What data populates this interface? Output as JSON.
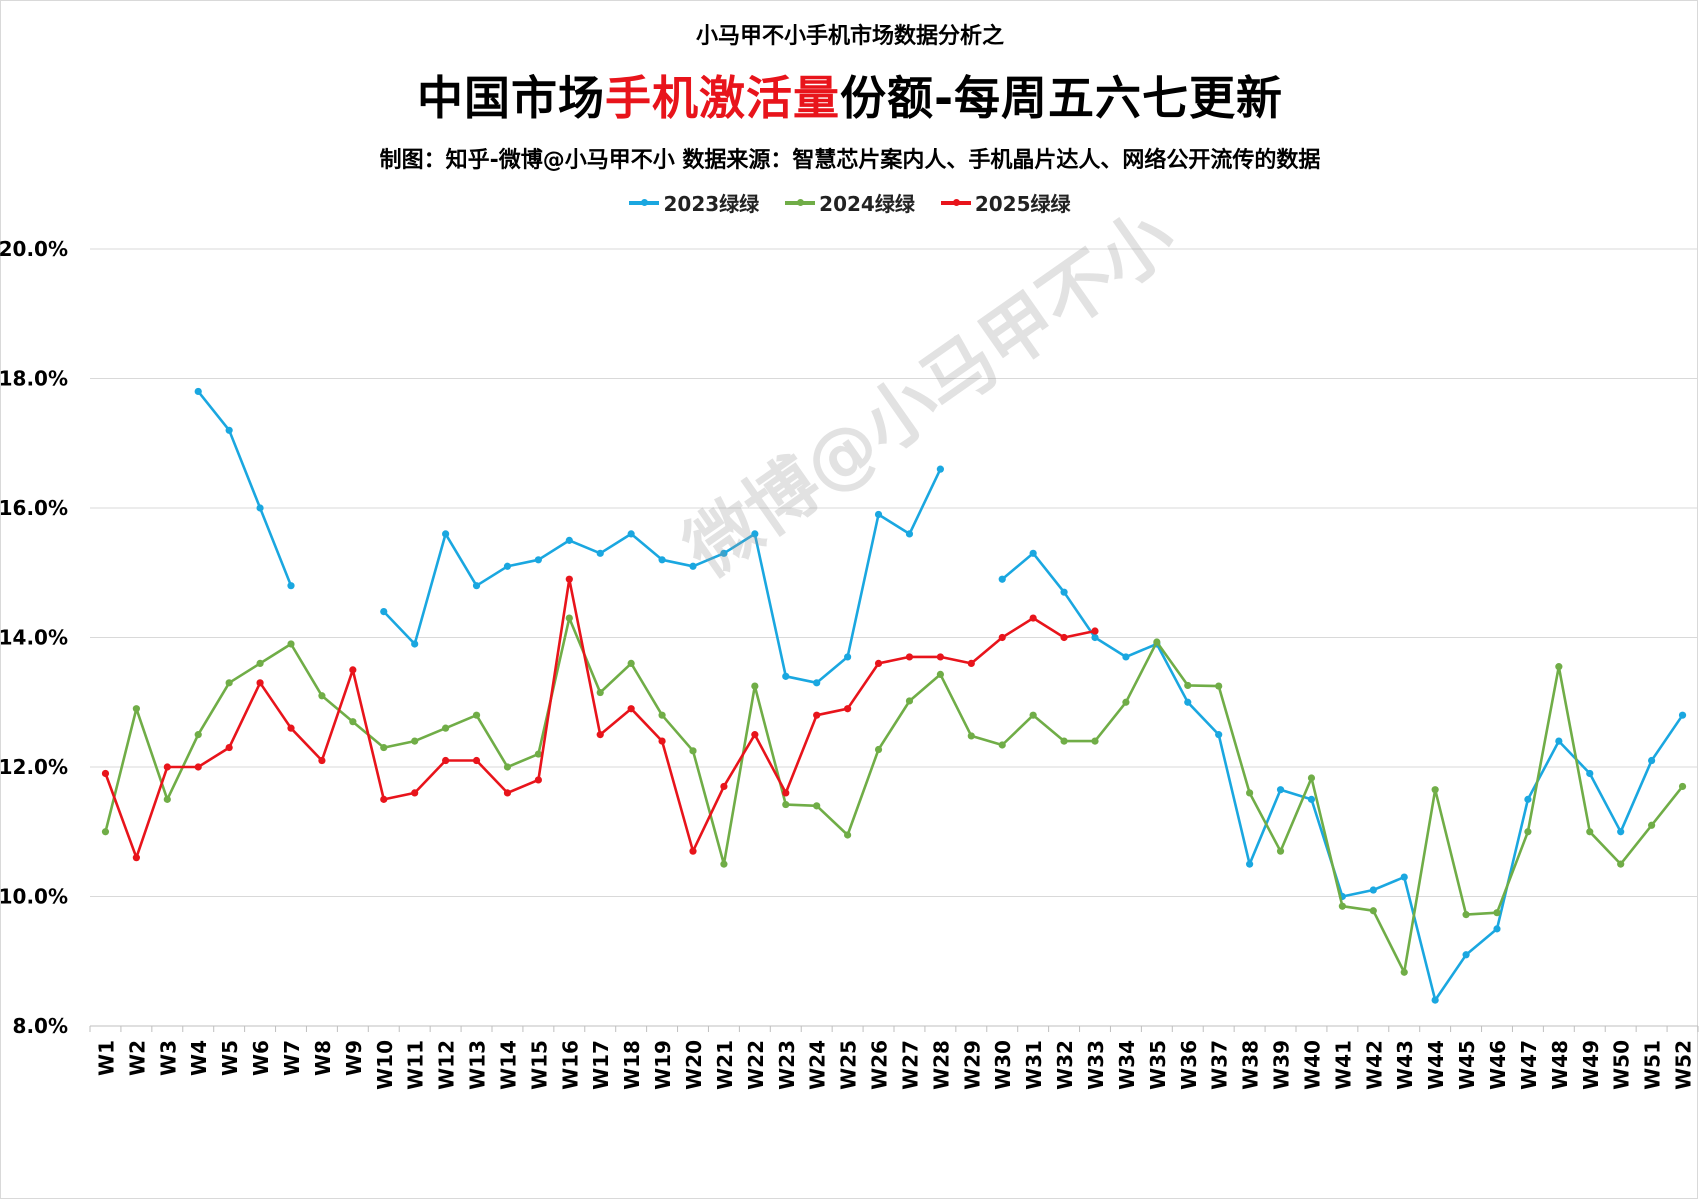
{
  "header": {
    "top_line": "小马甲不小手机市场数据分析之",
    "title_prefix": "中国市场",
    "title_highlight": "手机激活量",
    "title_suffix": "份额-每周五六七更新",
    "credit": "制图：知乎-微博@小马甲不小  数据来源：智慧芯片案内人、手机晶片达人、网络公开流传的数据"
  },
  "watermark": "微博@小马甲不小",
  "colors": {
    "s2023": "#1aa7e0",
    "s2024": "#70ad47",
    "s2025": "#e8141b",
    "grid": "#d9d9d9"
  },
  "chart_data": {
    "type": "line",
    "title": "中国市场手机激活量份额-每周五六七更新",
    "categories": [
      "W1",
      "W2",
      "W3",
      "W4",
      "W5",
      "W6",
      "W7",
      "W8",
      "W9",
      "W10",
      "W11",
      "W12",
      "W13",
      "W14",
      "W15",
      "W16",
      "W17",
      "W18",
      "W19",
      "W20",
      "W21",
      "W22",
      "W23",
      "W24",
      "W25",
      "W26",
      "W27",
      "W28",
      "W29",
      "W30",
      "W31",
      "W32",
      "W33",
      "W34",
      "W35",
      "W36",
      "W37",
      "W38",
      "W39",
      "W40",
      "W41",
      "W42",
      "W43",
      "W44",
      "W45",
      "W46",
      "W47",
      "W48",
      "W49",
      "W50",
      "W51",
      "W52"
    ],
    "y_ticks": [
      "8.0%",
      "10.0%",
      "12.0%",
      "14.0%",
      "16.0%",
      "18.0%",
      "20.0%"
    ],
    "ylim": [
      8,
      20
    ],
    "legend_position": "top",
    "grid": true,
    "series": [
      {
        "name": "2023绿绿",
        "values": [
          null,
          null,
          null,
          17.8,
          17.2,
          16.0,
          14.8,
          null,
          null,
          14.4,
          13.9,
          15.6,
          14.8,
          15.1,
          15.2,
          15.5,
          15.3,
          15.6,
          15.2,
          15.1,
          15.3,
          15.6,
          13.4,
          13.3,
          13.7,
          15.9,
          15.6,
          16.6,
          null,
          14.9,
          15.3,
          14.7,
          14.0,
          13.7,
          13.9,
          13.0,
          12.5,
          10.5,
          11.65,
          11.5,
          10.0,
          10.1,
          10.3,
          8.4,
          9.1,
          9.5,
          11.5,
          12.4,
          11.9,
          11.0,
          12.1,
          12.8
        ]
      },
      {
        "name": "2024绿绿",
        "values": [
          11.0,
          12.9,
          11.5,
          12.5,
          13.3,
          13.6,
          13.9,
          13.1,
          12.7,
          12.3,
          12.4,
          12.6,
          12.8,
          12.0,
          12.2,
          14.3,
          13.15,
          13.6,
          12.8,
          12.25,
          10.5,
          13.25,
          11.42,
          11.4,
          10.95,
          12.27,
          13.02,
          13.43,
          12.48,
          12.34,
          12.8,
          12.4,
          12.4,
          13.0,
          13.93,
          13.26,
          13.25,
          11.6,
          10.7,
          11.83,
          9.85,
          9.78,
          8.83,
          11.65,
          9.72,
          9.75,
          11.0,
          13.55,
          11.0,
          10.5,
          11.1,
          11.7
        ]
      },
      {
        "name": "2025绿绿",
        "values": [
          11.9,
          10.6,
          12.0,
          12.0,
          12.3,
          13.3,
          12.6,
          12.1,
          13.5,
          11.5,
          11.6,
          12.1,
          12.1,
          11.6,
          11.8,
          14.9,
          12.5,
          12.9,
          12.4,
          10.7,
          11.7,
          12.5,
          11.6,
          12.8,
          12.9,
          13.6,
          13.7,
          13.7,
          13.6,
          14.0,
          14.3,
          14.0,
          14.1,
          null,
          null,
          null,
          null,
          null,
          null,
          null,
          null,
          null,
          null,
          null,
          null,
          null,
          null,
          null,
          null,
          null,
          null,
          null
        ]
      }
    ]
  }
}
